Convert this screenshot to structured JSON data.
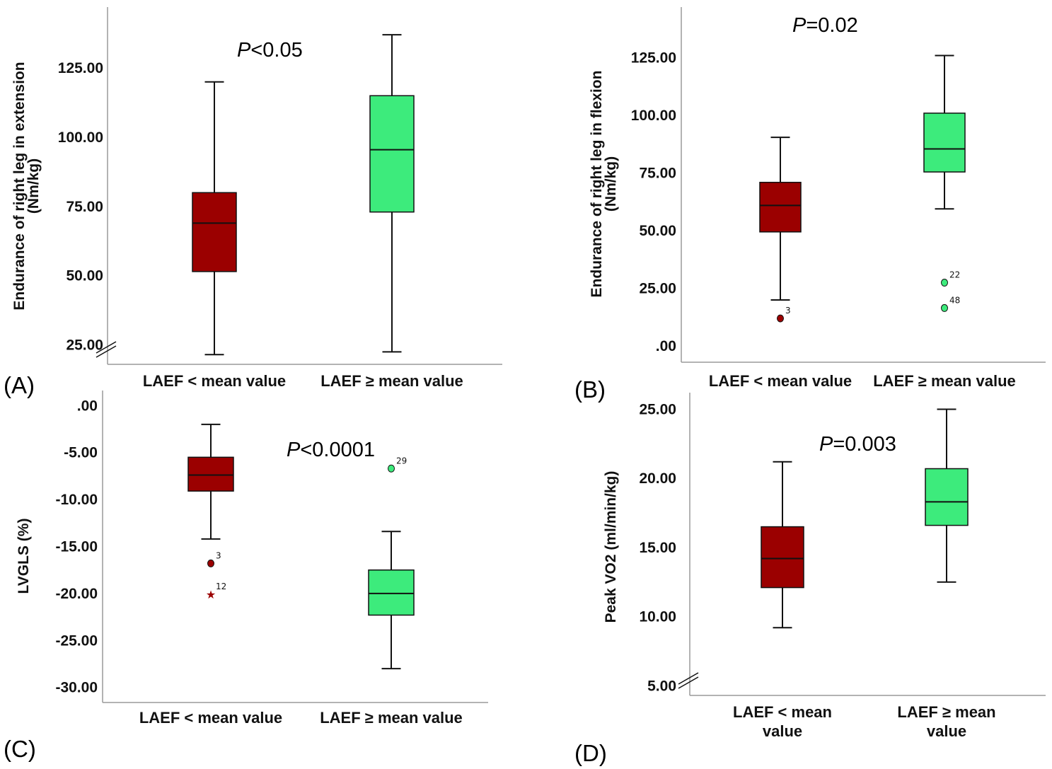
{
  "colors": {
    "low": "#9b0000",
    "high": "#3deb7c",
    "axis": "#9a9a9a"
  },
  "chart_data": [
    {
      "type": "box",
      "panel_label": "(A)",
      "p_prefix": "P",
      "p_rest": "<0.05",
      "ylabel_line1": "Endurance of right leg in extension",
      "ylabel_line2": "(Nm/kg)",
      "yticks": [
        "25.00",
        "50.00",
        "75.00",
        "100.00",
        "125.00"
      ],
      "ylim": [
        18,
        147
      ],
      "axis_break": true,
      "categories": [
        {
          "label_lines": [
            "LAEF < mean value"
          ],
          "whisker_low": 21.5,
          "q1": 51.5,
          "median": 69,
          "q3": 80,
          "whisker_high": 120,
          "outliers": []
        },
        {
          "label_lines": [
            "LAEF ≥ mean value"
          ],
          "whisker_low": 22.5,
          "q1": 73,
          "median": 95.5,
          "q3": 115,
          "whisker_high": 137,
          "outliers": []
        }
      ]
    },
    {
      "type": "box",
      "panel_label": "(B)",
      "p_prefix": "P",
      "p_rest": "=0.02",
      "ylabel_line1": "Endurance of right leg in flexion",
      "ylabel_line2": "(Nm/kg)",
      "yticks": [
        ".00",
        "25.00",
        "50.00",
        "75.00",
        "100.00",
        "125.00"
      ],
      "ylim": [
        -7,
        147
      ],
      "axis_break": false,
      "categories": [
        {
          "label_lines": [
            "LAEF < mean value"
          ],
          "whisker_low": 20,
          "q1": 49.5,
          "median": 61,
          "q3": 71,
          "whisker_high": 90.5,
          "outliers": [
            {
              "value": 12,
              "label": "3",
              "marker": "circle"
            }
          ]
        },
        {
          "label_lines": [
            "LAEF ≥ mean value"
          ],
          "whisker_low": 59.5,
          "q1": 75.5,
          "median": 85.5,
          "q3": 101,
          "whisker_high": 126,
          "outliers": [
            {
              "value": 27.5,
              "label": "22",
              "marker": "circle"
            },
            {
              "value": 16.5,
              "label": "48",
              "marker": "circle"
            }
          ]
        }
      ]
    },
    {
      "type": "box",
      "panel_label": "(C)",
      "p_prefix": "P",
      "p_rest": "<0.0001",
      "ylabel_line1": "LVGLS (%)",
      "ylabel_line2": "",
      "yticks": [
        "-30.00",
        "-25.00",
        "-20.00",
        "-15.00",
        "-10.00",
        "-5.00",
        ".00"
      ],
      "ylim": [
        -31.6,
        1.6
      ],
      "axis_break": false,
      "categories": [
        {
          "label_lines": [
            "LAEF < mean value"
          ],
          "whisker_low": -14.2,
          "q1": -9.1,
          "median": -7.4,
          "q3": -5.5,
          "whisker_high": -2,
          "outliers": [
            {
              "value": -16.8,
              "label": "3",
              "marker": "circle"
            },
            {
              "value": -20.1,
              "label": "12",
              "marker": "star"
            }
          ]
        },
        {
          "label_lines": [
            "LAEF ≥ mean value"
          ],
          "whisker_low": -28,
          "q1": -22.3,
          "median": -20,
          "q3": -17.5,
          "whisker_high": -13.4,
          "outliers": [
            {
              "value": -6.7,
              "label": "29",
              "marker": "circle"
            }
          ]
        }
      ]
    },
    {
      "type": "box",
      "panel_label": "(D)",
      "p_prefix": "P",
      "p_rest": "=0.003",
      "ylabel_line1": "Peak VO2 (ml/min/kg)",
      "ylabel_line2": "",
      "yticks": [
        "5.00",
        "10.00",
        "15.00",
        "20.00",
        "25.00"
      ],
      "ylim": [
        4.3,
        26.2
      ],
      "axis_break": true,
      "categories": [
        {
          "label_lines": [
            "LAEF < mean",
            "value"
          ],
          "whisker_low": 9.2,
          "q1": 12.1,
          "median": 14.2,
          "q3": 16.5,
          "whisker_high": 21.2,
          "outliers": []
        },
        {
          "label_lines": [
            "LAEF ≥ mean",
            "value"
          ],
          "whisker_low": 12.5,
          "q1": 16.6,
          "median": 18.3,
          "q3": 20.7,
          "whisker_high": 25,
          "outliers": []
        }
      ]
    }
  ]
}
